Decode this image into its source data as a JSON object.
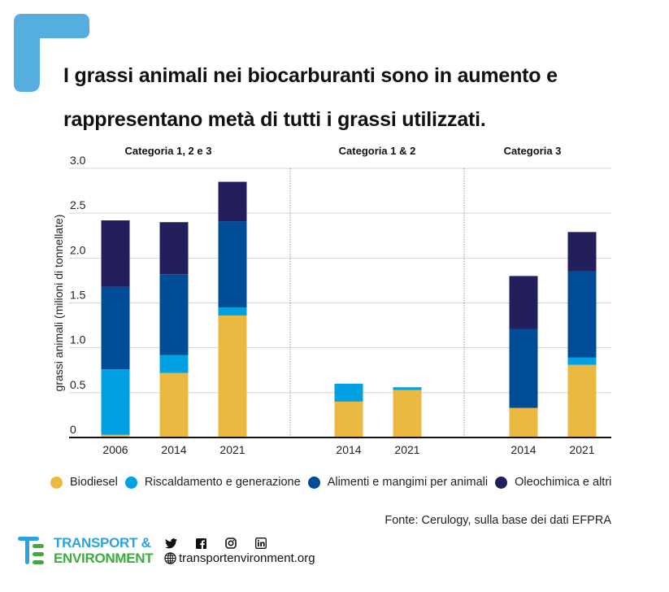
{
  "title": {
    "line1": "I grassi animali nei biocarburanti sono in aumento e",
    "line2": "rappresentano metà di tutti i grassi utilizzati."
  },
  "colors": {
    "Biodiesel": "#ecb940",
    "Riscaldamento e generazione": "#00a0e3",
    "Alimenti e mangimi per animali": "#004c97",
    "Oleochimica e altri": "#231f5c",
    "accent": "#56ade0"
  },
  "chart_data": {
    "type": "bar",
    "stacked": true,
    "ylabel": "grassi animali (milioni di tonnellate)",
    "ylim": [
      0,
      3.0
    ],
    "yticks": [
      {
        "value": 0,
        "label": "0"
      },
      {
        "value": 0.5,
        "label": "0.5"
      },
      {
        "value": 1.0,
        "label": "1.0"
      },
      {
        "value": 1.5,
        "label": "1.5"
      },
      {
        "value": 2.0,
        "label": "2.0"
      },
      {
        "value": 2.5,
        "label": "2.5"
      },
      {
        "value": 3.0,
        "label": "3.0"
      }
    ],
    "grid": true,
    "groups": [
      {
        "label": "Categoria 1, 2 e 3",
        "categories": [
          "2006",
          "2014",
          "2021"
        ]
      },
      {
        "label": "Categoria 1 & 2",
        "categories": [
          "2014",
          "2021"
        ]
      },
      {
        "label": "Categoria 3",
        "categories": [
          "2014",
          "2021"
        ]
      }
    ],
    "series": [
      {
        "name": "Biodiesel",
        "values": [
          [
            0.03,
            0.72,
            1.36
          ],
          [
            0.4,
            0.53
          ],
          [
            0.33,
            0.81
          ]
        ]
      },
      {
        "name": "Riscaldamento e generazione",
        "values": [
          [
            0.73,
            0.2,
            0.09
          ],
          [
            0.2,
            0.03
          ],
          [
            0.0,
            0.08
          ]
        ]
      },
      {
        "name": "Alimenti e mangimi per animali",
        "values": [
          [
            0.92,
            0.9,
            0.96
          ],
          [
            0.0,
            0.0
          ],
          [
            0.88,
            0.96
          ]
        ]
      },
      {
        "name": "Oleochimica e altri",
        "values": [
          [
            0.74,
            0.58,
            0.44
          ],
          [
            0.0,
            0.0
          ],
          [
            0.59,
            0.44
          ]
        ]
      }
    ],
    "legend": [
      "Biodiesel",
      "Riscaldamento e generazione",
      "Alimenti e mangimi per animali",
      "Oleochimica e altri"
    ],
    "legend_position": "bottom"
  },
  "source": "Fonte: Cerulogy, sulla base dei dati  EFPRA",
  "footer": {
    "brand_line1": "TRANSPORT &",
    "brand_line2": "ENVIRONMENT",
    "website": "transportenvironment.org",
    "social": [
      "twitter-icon",
      "facebook-icon",
      "instagram-icon",
      "linkedin-icon"
    ]
  }
}
